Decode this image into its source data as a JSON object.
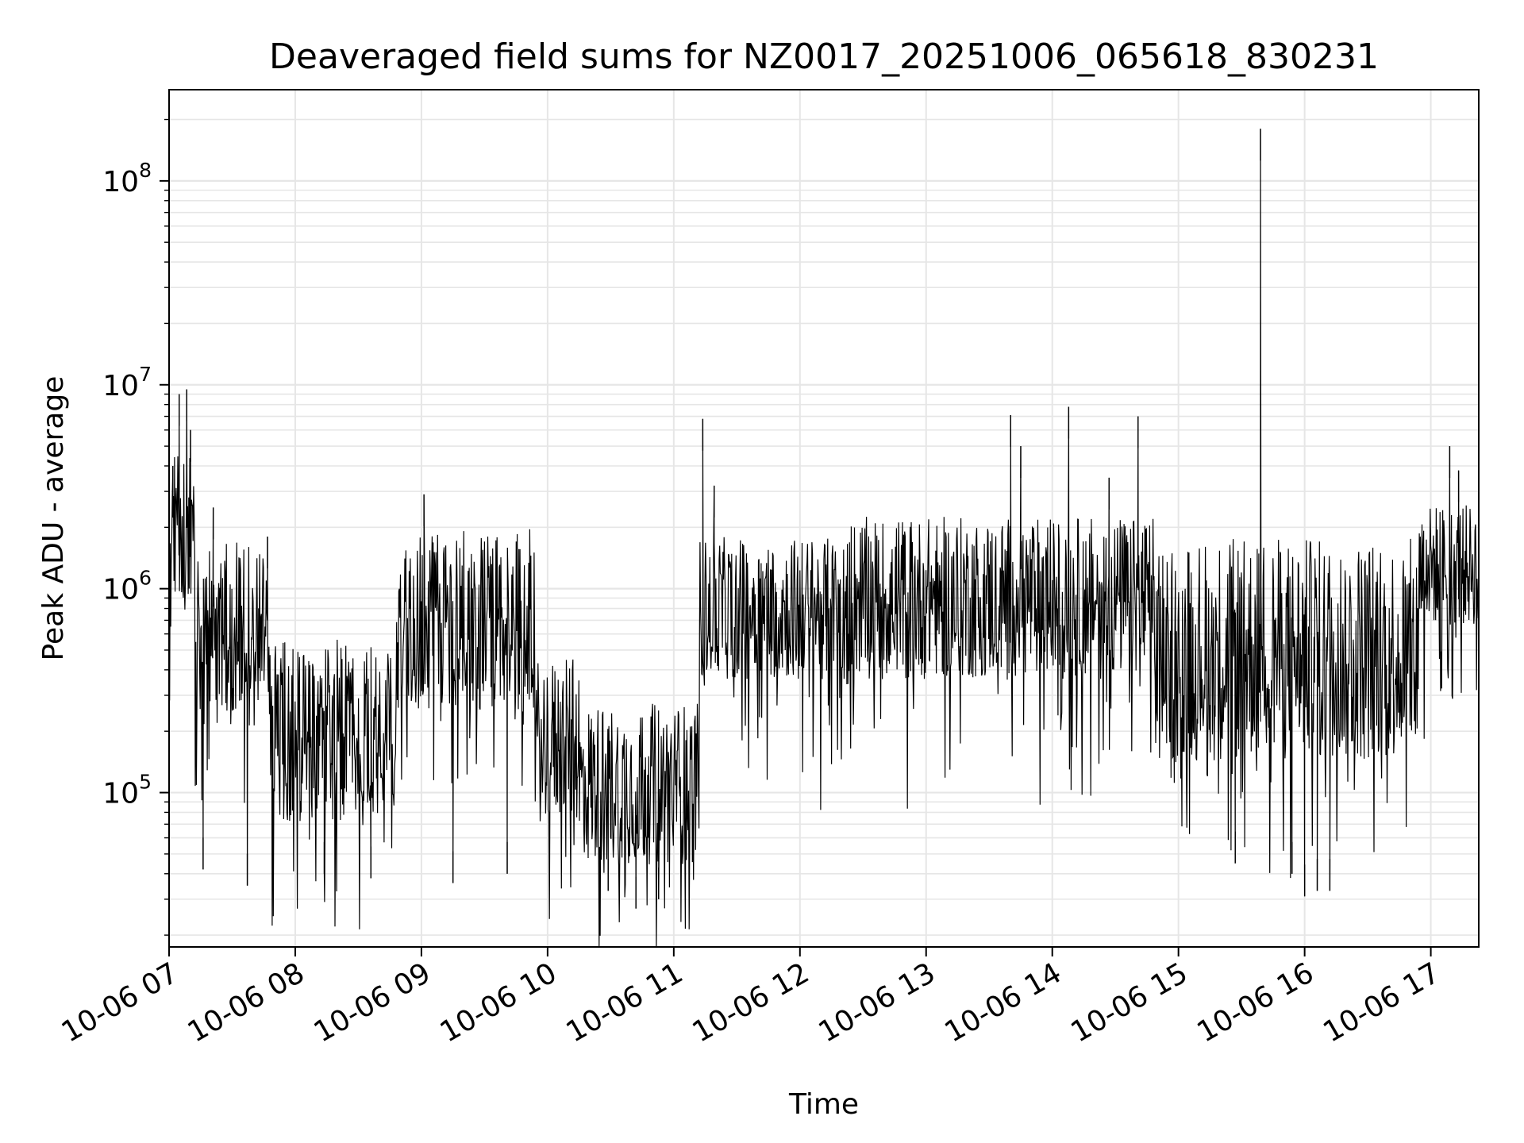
{
  "chart_data": {
    "type": "line",
    "title": "Deaveraged field sums for NZ0017_20251006_065618_830231",
    "xlabel": "Time",
    "ylabel": "Peak ADU - average",
    "yscale": "log",
    "ylim": [
      17500,
      280000000
    ],
    "xlim_hours": [
      7.0,
      17.38
    ],
    "x_tick_labels": [
      "10-06 07",
      "10-06 08",
      "10-06 09",
      "10-06 10",
      "10-06 11",
      "10-06 12",
      "10-06 13",
      "10-06 14",
      "10-06 15",
      "10-06 16",
      "10-06 17"
    ],
    "x_tick_hours": [
      7,
      8,
      9,
      10,
      11,
      12,
      13,
      14,
      15,
      16,
      17
    ],
    "y_major_ticks": [
      {
        "value": 100000,
        "base": "10",
        "exp": "5"
      },
      {
        "value": 1000000,
        "base": "10",
        "exp": "6"
      },
      {
        "value": 10000000,
        "base": "10",
        "exp": "7"
      },
      {
        "value": 100000000,
        "base": "10",
        "exp": "8"
      }
    ],
    "grid": true,
    "line_color": "#000000",
    "segments": [
      {
        "t0": 7.0,
        "t1": 7.2,
        "base": 2000000,
        "spread": 0.35
      },
      {
        "t0": 7.2,
        "t1": 7.8,
        "base": 600000,
        "spread": 0.45
      },
      {
        "t0": 7.8,
        "t1": 8.8,
        "base": 200000,
        "spread": 0.45
      },
      {
        "t0": 8.8,
        "t1": 9.9,
        "base": 700000,
        "spread": 0.45
      },
      {
        "t0": 9.9,
        "t1": 10.25,
        "base": 180000,
        "spread": 0.4
      },
      {
        "t0": 10.25,
        "t1": 11.2,
        "base": 110000,
        "spread": 0.4
      },
      {
        "t0": 11.2,
        "t1": 12.4,
        "base": 800000,
        "spread": 0.35
      },
      {
        "t0": 12.4,
        "t1": 14.8,
        "base": 900000,
        "spread": 0.4
      },
      {
        "t0": 14.8,
        "t1": 16.9,
        "base": 500000,
        "spread": 0.55
      },
      {
        "t0": 16.9,
        "t1": 17.38,
        "base": 1300000,
        "spread": 0.3
      }
    ],
    "spikes": [
      {
        "t": 7.03,
        "value": 4000000
      },
      {
        "t": 7.08,
        "value": 9000000
      },
      {
        "t": 7.14,
        "value": 9500000
      },
      {
        "t": 7.17,
        "value": 6000000
      },
      {
        "t": 7.35,
        "value": 2500000
      },
      {
        "t": 7.78,
        "value": 1800000
      },
      {
        "t": 9.02,
        "value": 2900000
      },
      {
        "t": 11.23,
        "value": 6800000
      },
      {
        "t": 11.32,
        "value": 3200000
      },
      {
        "t": 13.67,
        "value": 7100000
      },
      {
        "t": 13.75,
        "value": 5000000
      },
      {
        "t": 14.13,
        "value": 7800000
      },
      {
        "t": 14.45,
        "value": 3500000
      },
      {
        "t": 14.68,
        "value": 7000000
      },
      {
        "t": 15.65,
        "value": 180000000
      },
      {
        "t": 17.15,
        "value": 5000000
      },
      {
        "t": 17.22,
        "value": 3800000
      }
    ],
    "dips": [
      {
        "t": 7.27,
        "value": 42000
      },
      {
        "t": 7.62,
        "value": 35000
      },
      {
        "t": 8.23,
        "value": 40000
      },
      {
        "t": 8.6,
        "value": 38000
      },
      {
        "t": 9.25,
        "value": 36000
      },
      {
        "t": 9.68,
        "value": 40000
      },
      {
        "t": 10.48,
        "value": 33000
      },
      {
        "t": 10.7,
        "value": 27000
      },
      {
        "t": 10.88,
        "value": 30000
      },
      {
        "t": 15.45,
        "value": 45000
      },
      {
        "t": 15.9,
        "value": 40000
      },
      {
        "t": 16.0,
        "value": 31000
      },
      {
        "t": 16.1,
        "value": 33000
      },
      {
        "t": 16.2,
        "value": 33000
      }
    ]
  }
}
